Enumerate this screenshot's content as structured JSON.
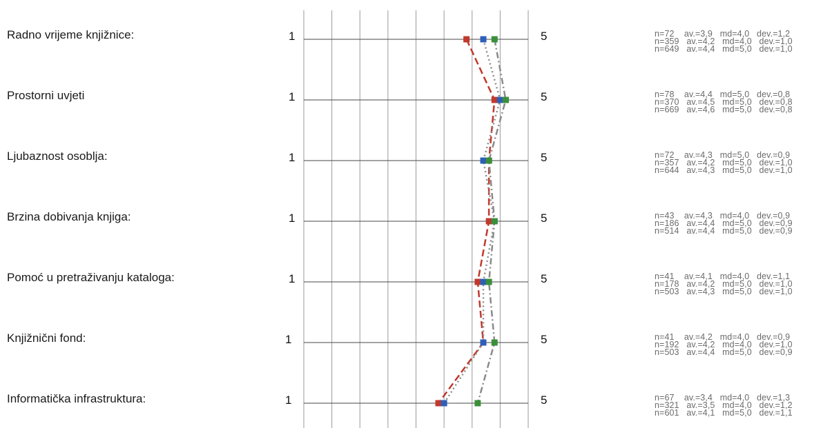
{
  "chart_data": {
    "type": "line",
    "scale_min_label": "1",
    "scale_max_label": "5",
    "xlim": [
      1,
      5
    ],
    "grid": true,
    "series": [
      {
        "color": "#c0392b",
        "style": "dashed"
      },
      {
        "color": "#2e5fb8",
        "style": "dotted"
      },
      {
        "color": "#3a8f3a",
        "style": "dash-dot"
      }
    ],
    "items": [
      {
        "label": "Radno vrijeme knjižnice:",
        "values": [
          3.9,
          4.2,
          4.4
        ],
        "stats": [
          "n=72    av.=3,9   md=4,0   dev.=1,2",
          "n=359   av.=4,2   md=4,0   dev.=1,0",
          "n=649   av.=4,4   md=5,0   dev.=1,0"
        ]
      },
      {
        "label": "Prostorni uvjeti",
        "values": [
          4.4,
          4.5,
          4.6
        ],
        "stats": [
          "n=78    av.=4,4   md=5,0   dev.=0,8",
          "n=370   av.=4,5   md=5,0   dev.=0,8",
          "n=669   av.=4,6   md=5,0   dev.=0,8"
        ]
      },
      {
        "label": "Ljubaznost osoblja:",
        "values": [
          4.3,
          4.2,
          4.3
        ],
        "stats": [
          "n=72    av.=4,3   md=5,0   dev.=0,9",
          "n=357   av.=4,2   md=5,0   dev.=1,0",
          "n=644   av.=4,3   md=5,0   dev.=1,0"
        ]
      },
      {
        "label": "Brzina dobivanja knjiga:",
        "values": [
          4.3,
          4.4,
          4.4
        ],
        "stats": [
          "n=43    av.=4,3   md=4,0   dev.=0,9",
          "n=186   av.=4,4   md=5,0   dev.=0,9",
          "n=514   av.=4,4   md=5,0   dev.=0,9"
        ]
      },
      {
        "label": "Pomoć  u pretraživanju kataloga:",
        "values": [
          4.1,
          4.2,
          4.3
        ],
        "stats": [
          "n=41    av.=4,1   md=4,0   dev.=1,1",
          "n=178   av.=4,2   md=5,0   dev.=1,0",
          "n=503   av.=4,3   md=5,0   dev.=1,0"
        ]
      },
      {
        "label": "Knjižnični fond:",
        "values": [
          4.2,
          4.2,
          4.4
        ],
        "stats": [
          "n=41    av.=4,2   md=4,0   dev.=0,9",
          "n=192   av.=4,2   md=4,0   dev.=1,0",
          "n=503   av.=4,4   md=5,0   dev.=0,9"
        ]
      },
      {
        "label": "Informatička infrastruktura:",
        "values": [
          3.4,
          3.5,
          4.1
        ],
        "stats": [
          "n=67    av.=3,4   md=4,0   dev.=1,3",
          "n=321   av.=3,5   md=4,0   dev.=1,2",
          "n=601   av.=4,1   md=5,0   dev.=1,1"
        ]
      }
    ]
  }
}
